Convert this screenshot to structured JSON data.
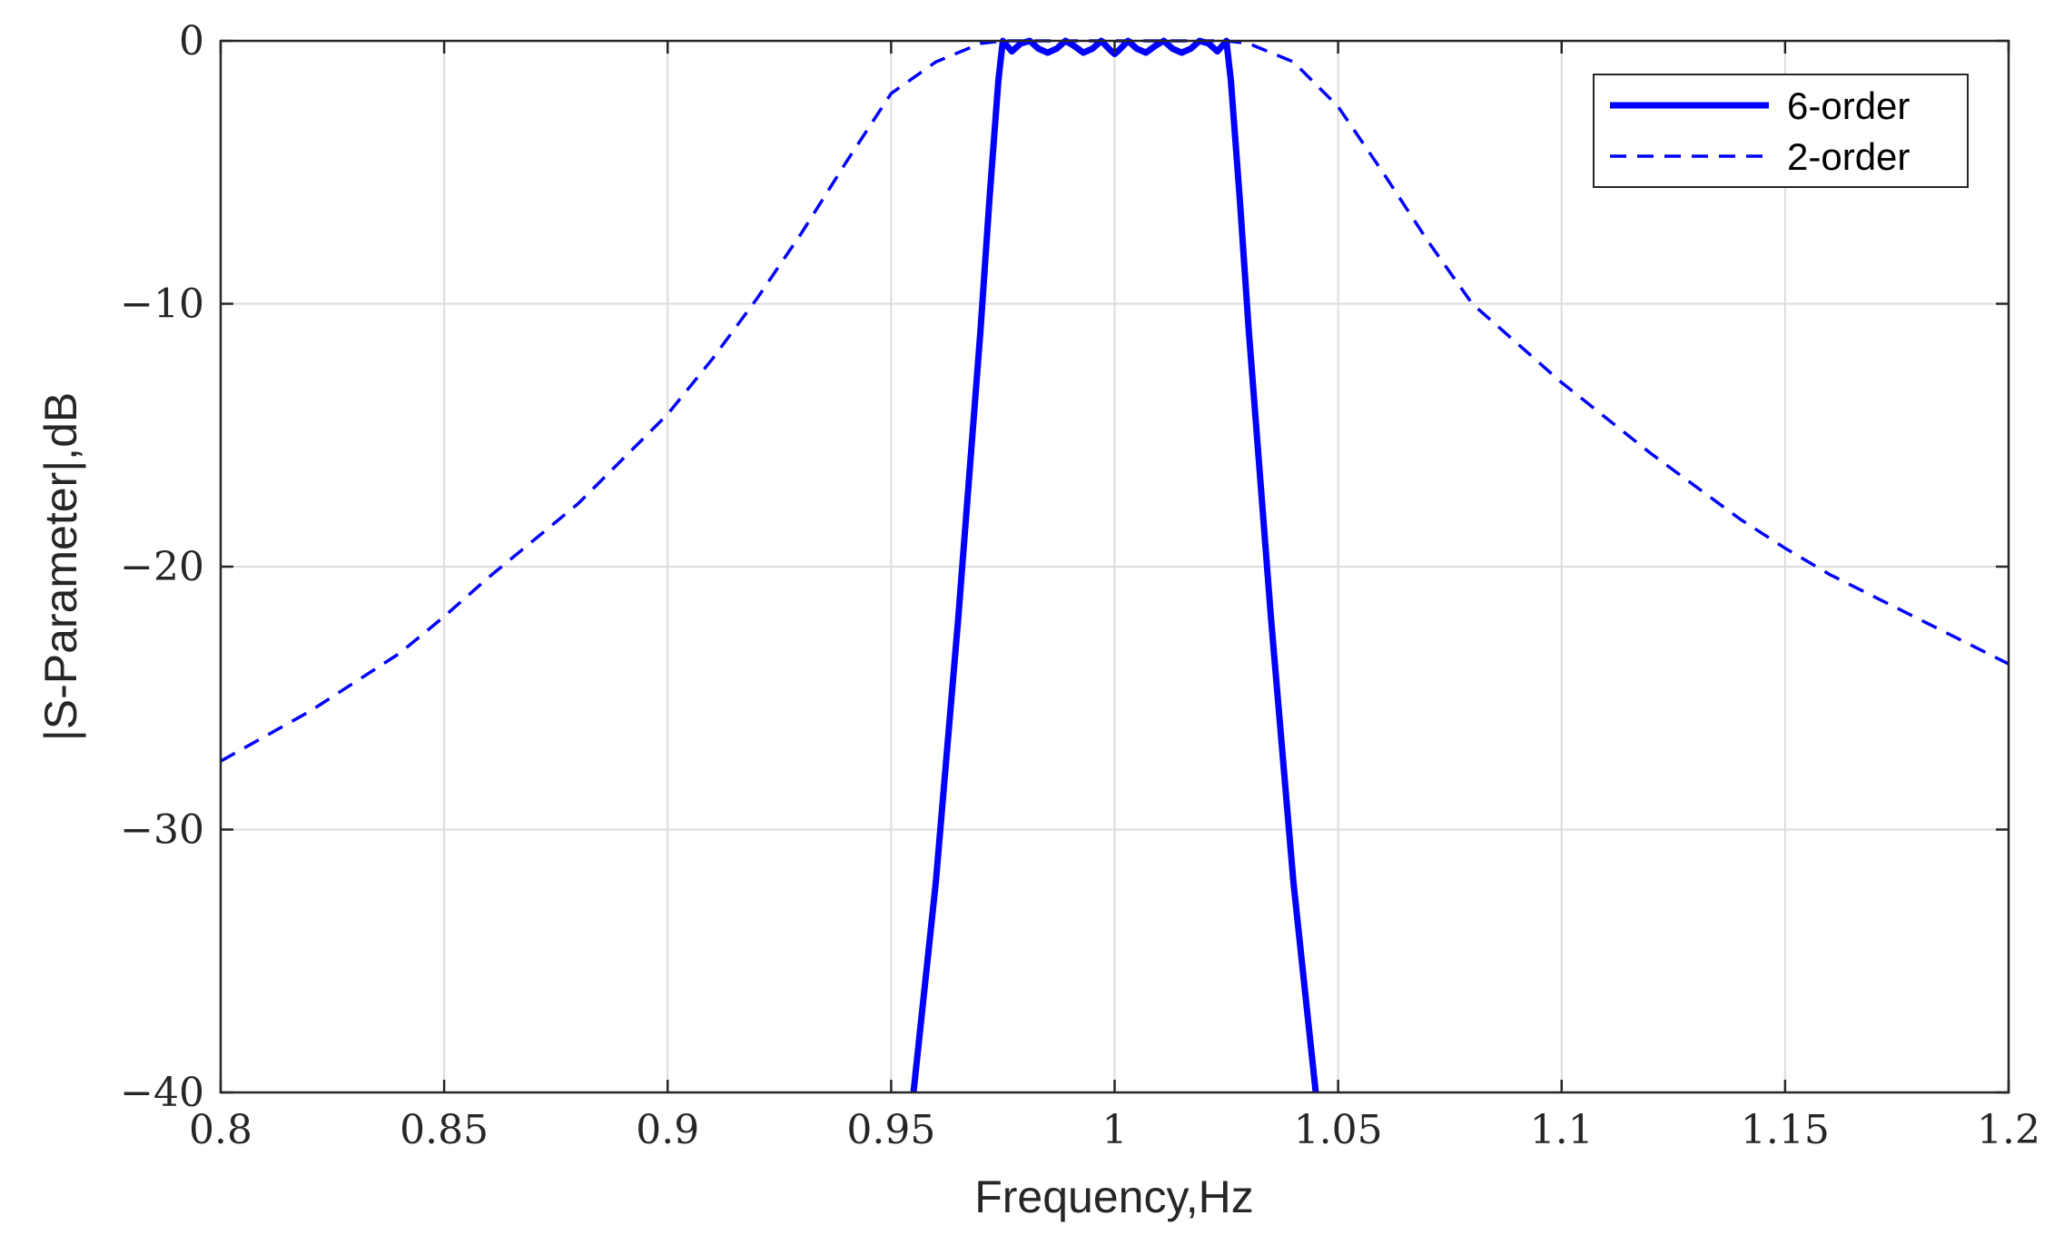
{
  "chart_data": {
    "type": "line",
    "title": "",
    "xlabel": "Frequency,Hz",
    "ylabel": "|S-Parameter|,dB",
    "xlim": [
      0.8,
      1.2
    ],
    "ylim": [
      -40,
      0
    ],
    "grid": true,
    "legend_position": "top-right",
    "x_ticks": [
      "0.8",
      "0.85",
      "0.9",
      "0.95",
      "1",
      "1.05",
      "1.1",
      "1.15",
      "1.2"
    ],
    "y_ticks": [
      "0",
      "−10",
      "−20",
      "−30",
      "−40"
    ],
    "series": [
      {
        "name": "6-order",
        "style": "solid",
        "color": "#0000ff",
        "x": [
          0.955,
          0.96,
          0.965,
          0.97,
          0.972,
          0.974,
          0.975,
          0.977,
          0.979,
          0.981,
          0.983,
          0.985,
          0.987,
          0.989,
          0.991,
          0.993,
          0.995,
          0.997,
          0.999,
          1.0,
          1.001,
          1.003,
          1.005,
          1.007,
          1.009,
          1.011,
          1.013,
          1.015,
          1.017,
          1.019,
          1.021,
          1.023,
          1.025,
          1.026,
          1.028,
          1.03,
          1.035,
          1.04,
          1.045
        ],
        "y": [
          -40,
          -32,
          -22,
          -11,
          -6,
          -1.5,
          0,
          -0.4,
          -0.1,
          0,
          -0.3,
          -0.45,
          -0.3,
          0,
          -0.2,
          -0.45,
          -0.3,
          0,
          -0.35,
          -0.5,
          -0.35,
          0,
          -0.3,
          -0.45,
          -0.2,
          0,
          -0.3,
          -0.45,
          -0.3,
          0,
          -0.1,
          -0.4,
          0,
          -1.5,
          -6,
          -11,
          -22,
          -32,
          -40
        ]
      },
      {
        "name": "2-order",
        "style": "dashed",
        "color": "#0000ff",
        "x": [
          0.8,
          0.82,
          0.84,
          0.85,
          0.86,
          0.88,
          0.9,
          0.91,
          0.92,
          0.93,
          0.94,
          0.95,
          0.96,
          0.97,
          0.975,
          0.98,
          1.0,
          1.02,
          1.025,
          1.03,
          1.04,
          1.05,
          1.06,
          1.07,
          1.08,
          1.1,
          1.12,
          1.14,
          1.15,
          1.16,
          1.18,
          1.2
        ],
        "y": [
          -27.4,
          -25.5,
          -23.3,
          -21.9,
          -20.4,
          -17.6,
          -14.2,
          -12.1,
          -9.8,
          -7.3,
          -4.6,
          -2.0,
          -0.8,
          -0.1,
          0,
          0,
          0,
          0,
          0,
          -0.1,
          -0.8,
          -2.5,
          -5.0,
          -7.6,
          -10.0,
          -13.0,
          -15.7,
          -18.2,
          -19.3,
          -20.3,
          -22.0,
          -23.7
        ]
      }
    ]
  }
}
